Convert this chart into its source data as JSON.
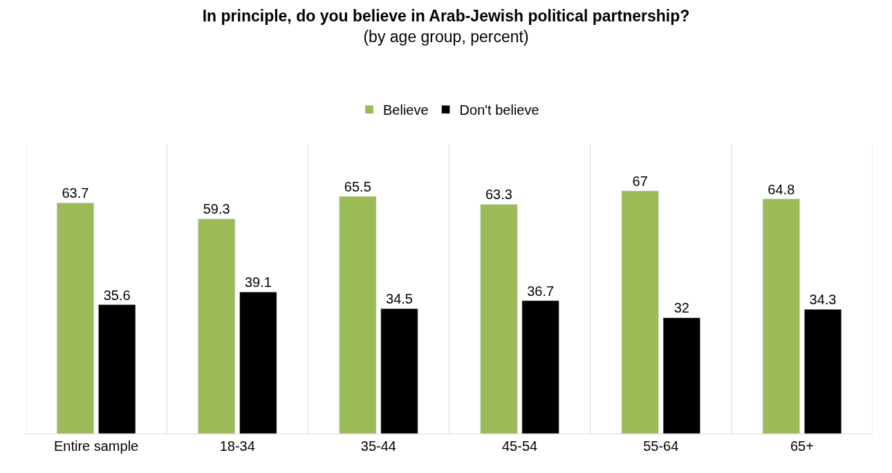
{
  "chart_data": {
    "type": "bar",
    "title": "In principle, do you believe in Arab-Jewish political partnership?",
    "subtitle": "(by age group, percent)",
    "categories": [
      "Entire sample",
      "18-34",
      "35-44",
      "45-54",
      "55-64",
      "65+"
    ],
    "series": [
      {
        "name": "Believe",
        "color": "#9bbb59",
        "values": [
          63.7,
          59.3,
          65.5,
          63.3,
          67,
          64.8
        ]
      },
      {
        "name": "Don't believe",
        "color": "#000000",
        "values": [
          35.6,
          39.1,
          34.5,
          36.7,
          32,
          34.3
        ]
      }
    ],
    "ylim": [
      0,
      80
    ],
    "data_labels": true,
    "grid": "x",
    "legend": "top",
    "tick_labels": "x"
  }
}
